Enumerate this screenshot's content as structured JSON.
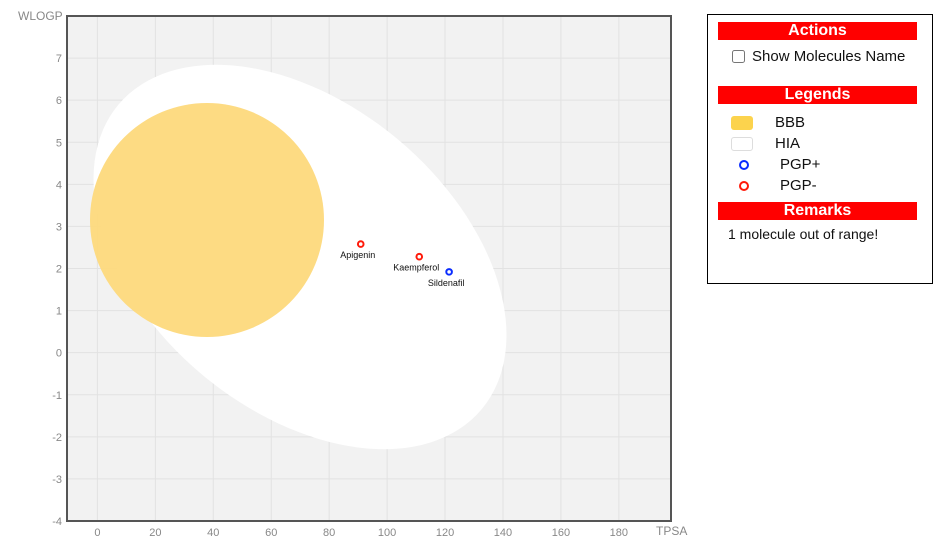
{
  "chart_data": {
    "type": "scatter",
    "xlabel": "TPSA",
    "ylabel": "WLOGP",
    "xlim": [
      -10.5,
      198
    ],
    "ylim": [
      -4,
      8
    ],
    "xticks": [
      0,
      20,
      40,
      60,
      80,
      100,
      120,
      140,
      160,
      180
    ],
    "yticks": [
      -4,
      -3,
      -2,
      -1,
      0,
      1,
      2,
      3,
      4,
      5,
      6,
      7
    ],
    "grid": true,
    "points": [
      {
        "name": "Apigenin",
        "x": 90.9,
        "y": 2.58,
        "class": "PGP-"
      },
      {
        "name": "Kaempferol",
        "x": 111.1,
        "y": 2.28,
        "class": "PGP-"
      },
      {
        "name": "Sildenafil",
        "x": 121.4,
        "y": 1.92,
        "class": "PGP+"
      }
    ],
    "regions": [
      {
        "name": "HIA",
        "color": "#ffffff"
      },
      {
        "name": "BBB",
        "color": "#fdd97c"
      }
    ]
  },
  "colors": {
    "pgp_plus": "#0a2cff",
    "pgp_minus": "#ff1a0a",
    "bbb": "#fcd34d",
    "header": "#ff0000"
  },
  "panel": {
    "actions_title": "Actions",
    "show_names_label": "Show Molecules Name",
    "legends_title": "Legends",
    "legend": [
      "BBB",
      "HIA",
      "PGP+",
      "PGP-"
    ],
    "remarks_title": "Remarks",
    "remark": "1 molecule out of range!"
  }
}
